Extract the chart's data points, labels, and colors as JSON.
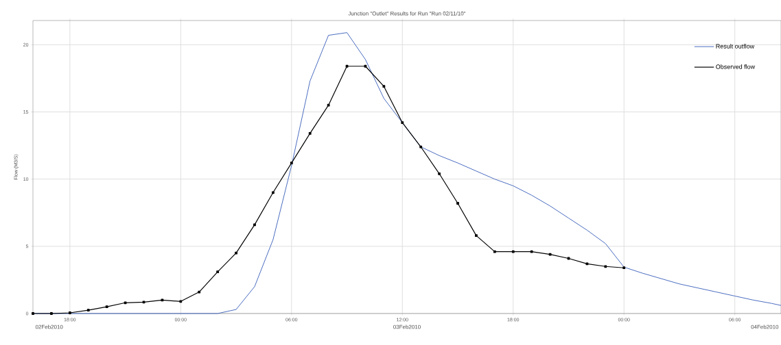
{
  "chart_data": {
    "type": "line",
    "title": "Junction \"Outlet\" Results for Run \"Run 02/11/10\"",
    "ylabel": "Flow (M3/S)",
    "x": [
      "2010-02-02T16:00",
      "2010-02-02T17:00",
      "2010-02-02T18:00",
      "2010-02-02T19:00",
      "2010-02-02T20:00",
      "2010-02-02T21:00",
      "2010-02-02T22:00",
      "2010-02-02T23:00",
      "2010-02-03T00:00",
      "2010-02-03T01:00",
      "2010-02-03T02:00",
      "2010-02-03T03:00",
      "2010-02-03T04:00",
      "2010-02-03T05:00",
      "2010-02-03T06:00",
      "2010-02-03T07:00",
      "2010-02-03T08:00",
      "2010-02-03T09:00",
      "2010-02-03T10:00",
      "2010-02-03T11:00",
      "2010-02-03T12:00",
      "2010-02-03T13:00",
      "2010-02-03T14:00",
      "2010-02-03T15:00",
      "2010-02-03T16:00",
      "2010-02-03T17:00",
      "2010-02-03T18:00",
      "2010-02-03T19:00",
      "2010-02-03T20:00",
      "2010-02-03T21:00",
      "2010-02-03T22:00",
      "2010-02-03T23:00",
      "2010-02-04T00:00",
      "2010-02-04T01:00",
      "2010-02-04T02:00",
      "2010-02-04T03:00",
      "2010-02-04T04:00",
      "2010-02-04T05:00",
      "2010-02-04T06:00",
      "2010-02-04T07:00",
      "2010-02-04T08:00",
      "2010-02-04T08:30"
    ],
    "series": [
      {
        "name": "Result outflow",
        "color": "#4a6cc0",
        "marker": "none",
        "values": [
          0,
          0,
          0,
          0,
          0,
          0,
          0,
          0,
          0,
          0,
          0,
          0.3,
          2.0,
          5.5,
          11.0,
          17.3,
          20.7,
          20.9,
          18.9,
          16.0,
          14.2,
          12.4,
          11.75,
          11.2,
          10.6,
          10.0,
          9.5,
          8.8,
          8.0,
          7.1,
          6.2,
          5.2,
          3.45,
          3.0,
          2.6,
          2.2,
          1.9,
          1.6,
          1.3,
          1.0,
          0.75,
          0.6
        ]
      },
      {
        "name": "Observed flow",
        "color": "#000000",
        "marker": "square",
        "values": [
          0,
          0,
          0.05,
          0.25,
          0.5,
          0.8,
          0.85,
          1.0,
          0.9,
          1.6,
          3.1,
          4.5,
          6.6,
          9.0,
          11.2,
          13.4,
          15.5,
          18.4,
          18.4,
          16.9,
          14.2,
          12.4,
          10.4,
          8.2,
          5.8,
          4.6,
          4.6,
          4.6,
          4.4,
          4.1,
          3.7,
          3.5,
          3.4,
          null,
          null,
          null,
          null,
          null,
          null,
          null,
          null,
          null
        ]
      }
    ],
    "xlim": [
      "2010-02-02T16:00",
      "2010-02-04T08:30"
    ],
    "xticks": [
      {
        "value": "2010-02-02T18:00",
        "label": "18:00"
      },
      {
        "value": "2010-02-03T00:00",
        "label": "00:00"
      },
      {
        "value": "2010-02-03T06:00",
        "label": "06:00"
      },
      {
        "value": "2010-02-03T12:00",
        "label": "12:00"
      },
      {
        "value": "2010-02-03T18:00",
        "label": "18:00"
      },
      {
        "value": "2010-02-04T00:00",
        "label": "00:00"
      },
      {
        "value": "2010-02-04T06:00",
        "label": "06:00"
      }
    ],
    "ylim": [
      0,
      21.8
    ],
    "yticks": [
      0,
      5,
      10,
      15,
      20
    ],
    "annotations": [
      "02Feb2010",
      "03Feb2010",
      "04Feb2010"
    ],
    "grid": true,
    "legend": "top right",
    "line_style": "solid"
  }
}
